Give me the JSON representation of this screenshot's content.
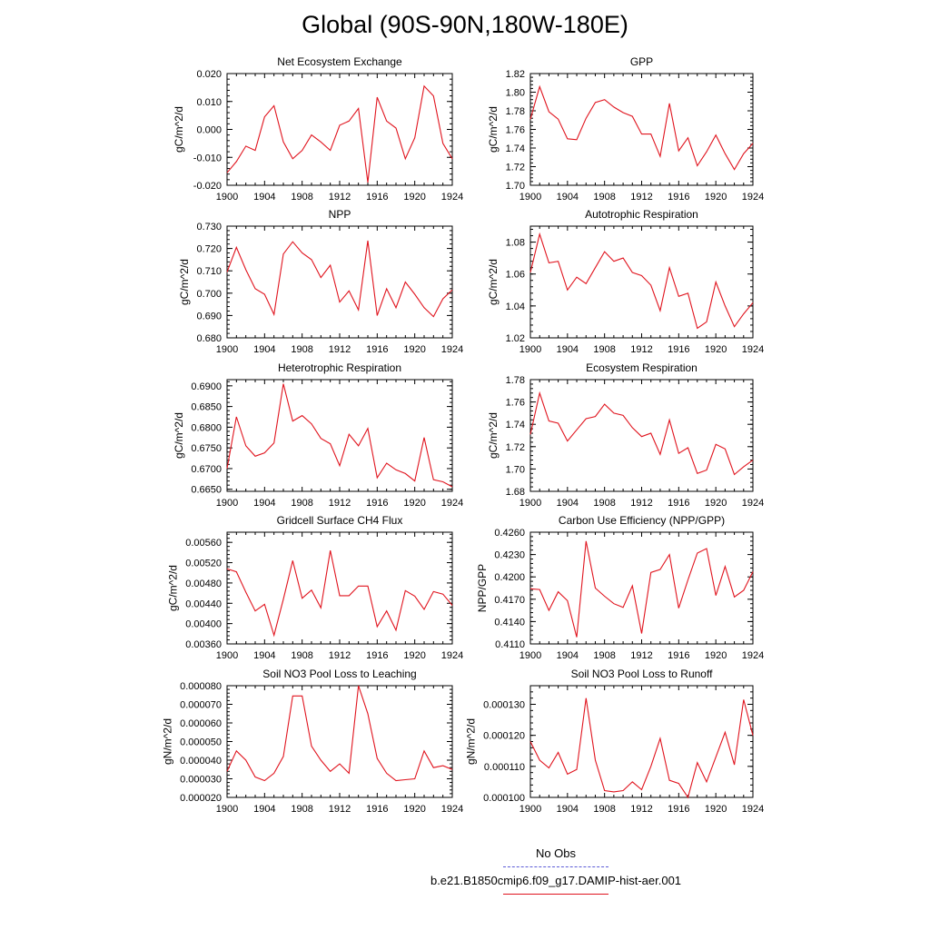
{
  "page": {
    "title": "Global (90S-90N,180W-180E)"
  },
  "legend": {
    "items": [
      {
        "label": "No Obs",
        "color": "#5b5bd6",
        "style": "dashed"
      },
      {
        "label": "b.e21.B1850cmip6.f09_g17.DAMIP-hist-aer.001",
        "color": "#e0141e",
        "style": "solid"
      }
    ]
  },
  "chart_data": [
    {
      "type": "line",
      "title": "Net Ecosystem Exchange",
      "ylabel": "gC/m^2/d",
      "xlim": [
        1900,
        1924
      ],
      "ylim": [
        -0.02,
        0.02
      ],
      "xticks": [
        "1900",
        "1904",
        "1908",
        "1912",
        "1916",
        "1920",
        "1924"
      ],
      "yticks": [
        "-0.020",
        "-0.010",
        "0.000",
        "0.010",
        "0.020"
      ],
      "color": "#e0141e",
      "x": [
        1900,
        1901,
        1902,
        1903,
        1904,
        1905,
        1906,
        1907,
        1908,
        1909,
        1910,
        1911,
        1912,
        1913,
        1914,
        1915,
        1916,
        1917,
        1918,
        1919,
        1920,
        1921,
        1922,
        1923,
        1924
      ],
      "values": [
        -0.0155,
        -0.0115,
        -0.006,
        -0.0075,
        0.0045,
        0.0085,
        -0.0045,
        -0.0105,
        -0.0075,
        -0.002,
        -0.0045,
        -0.0075,
        0.0015,
        0.003,
        0.0075,
        -0.019,
        0.0115,
        0.003,
        0.0005,
        -0.0105,
        -0.003,
        0.0155,
        0.012,
        -0.005,
        -0.0105
      ]
    },
    {
      "type": "line",
      "title": "GPP",
      "ylabel": "gC/m^2/d",
      "xlim": [
        1900,
        1924
      ],
      "ylim": [
        1.7,
        1.82
      ],
      "xticks": [
        "1900",
        "1904",
        "1908",
        "1912",
        "1916",
        "1920",
        "1924"
      ],
      "yticks": [
        "1.70",
        "1.72",
        "1.74",
        "1.76",
        "1.78",
        "1.80",
        "1.82"
      ],
      "color": "#e0141e",
      "x": [
        1900,
        1901,
        1902,
        1903,
        1904,
        1905,
        1906,
        1907,
        1908,
        1909,
        1910,
        1911,
        1912,
        1913,
        1914,
        1915,
        1916,
        1917,
        1918,
        1919,
        1920,
        1921,
        1922,
        1923,
        1924
      ],
      "values": [
        1.771,
        1.806,
        1.779,
        1.771,
        1.75,
        1.749,
        1.772,
        1.789,
        1.792,
        1.784,
        1.778,
        1.774,
        1.755,
        1.755,
        1.731,
        1.788,
        1.737,
        1.751,
        1.721,
        1.736,
        1.754,
        1.734,
        1.717,
        1.734,
        1.745
      ]
    },
    {
      "type": "line",
      "title": "NPP",
      "ylabel": "gC/m^2/d",
      "xlim": [
        1900,
        1924
      ],
      "ylim": [
        0.68,
        0.73
      ],
      "xticks": [
        "1900",
        "1904",
        "1908",
        "1912",
        "1916",
        "1920",
        "1924"
      ],
      "yticks": [
        "0.680",
        "0.690",
        "0.700",
        "0.710",
        "0.720",
        "0.730"
      ],
      "color": "#e0141e",
      "x": [
        1900,
        1901,
        1902,
        1903,
        1904,
        1905,
        1906,
        1907,
        1908,
        1909,
        1910,
        1911,
        1912,
        1913,
        1914,
        1915,
        1916,
        1917,
        1918,
        1919,
        1920,
        1921,
        1922,
        1923,
        1924
      ],
      "values": [
        0.7095,
        0.7205,
        0.7105,
        0.702,
        0.6995,
        0.6905,
        0.7175,
        0.723,
        0.718,
        0.715,
        0.707,
        0.7125,
        0.696,
        0.701,
        0.6925,
        0.7235,
        0.69,
        0.702,
        0.6935,
        0.705,
        0.6995,
        0.6935,
        0.6895,
        0.6975,
        0.7015
      ]
    },
    {
      "type": "line",
      "title": "Autotrophic Respiration",
      "ylabel": "gC/m^2/d",
      "xlim": [
        1900,
        1924
      ],
      "ylim": [
        1.02,
        1.09
      ],
      "xticks": [
        "1900",
        "1904",
        "1908",
        "1912",
        "1916",
        "1920",
        "1924"
      ],
      "yticks": [
        "1.02",
        "1.04",
        "1.06",
        "1.08"
      ],
      "color": "#e0141e",
      "x": [
        1900,
        1901,
        1902,
        1903,
        1904,
        1905,
        1906,
        1907,
        1908,
        1909,
        1910,
        1911,
        1912,
        1913,
        1914,
        1915,
        1916,
        1917,
        1918,
        1919,
        1920,
        1921,
        1922,
        1923,
        1924
      ],
      "values": [
        1.061,
        1.085,
        1.067,
        1.068,
        1.05,
        1.058,
        1.054,
        1.064,
        1.074,
        1.068,
        1.07,
        1.061,
        1.059,
        1.053,
        1.037,
        1.064,
        1.046,
        1.048,
        1.026,
        1.03,
        1.055,
        1.04,
        1.027,
        1.035,
        1.042
      ]
    },
    {
      "type": "line",
      "title": "Heterotrophic Respiration",
      "ylabel": "gC/m^2/d",
      "xlim": [
        1900,
        1924
      ],
      "ylim": [
        0.6645,
        0.6915
      ],
      "xticks": [
        "1900",
        "1904",
        "1908",
        "1912",
        "1916",
        "1920",
        "1924"
      ],
      "yticks": [
        "0.6650",
        "0.6700",
        "0.6750",
        "0.6800",
        "0.6850",
        "0.6900"
      ],
      "color": "#e0141e",
      "x": [
        1900,
        1901,
        1902,
        1903,
        1904,
        1905,
        1906,
        1907,
        1908,
        1909,
        1910,
        1911,
        1912,
        1913,
        1914,
        1915,
        1916,
        1917,
        1918,
        1919,
        1920,
        1921,
        1922,
        1923,
        1924
      ],
      "values": [
        0.67,
        0.6825,
        0.6755,
        0.673,
        0.6738,
        0.6762,
        0.6905,
        0.6815,
        0.6828,
        0.6808,
        0.6773,
        0.676,
        0.6707,
        0.6783,
        0.6755,
        0.6797,
        0.6678,
        0.6713,
        0.6697,
        0.6688,
        0.667,
        0.6775,
        0.6673,
        0.6668,
        0.6656
      ]
    },
    {
      "type": "line",
      "title": "Ecosystem Respiration",
      "ylabel": "gC/m^2/d",
      "xlim": [
        1900,
        1924
      ],
      "ylim": [
        1.68,
        1.78
      ],
      "xticks": [
        "1900",
        "1904",
        "1908",
        "1912",
        "1916",
        "1920",
        "1924"
      ],
      "yticks": [
        "1.68",
        "1.70",
        "1.72",
        "1.74",
        "1.76",
        "1.78"
      ],
      "color": "#e0141e",
      "x": [
        1900,
        1901,
        1902,
        1903,
        1904,
        1905,
        1906,
        1907,
        1908,
        1909,
        1910,
        1911,
        1912,
        1913,
        1914,
        1915,
        1916,
        1917,
        1918,
        1919,
        1920,
        1921,
        1922,
        1923,
        1924
      ],
      "values": [
        1.731,
        1.768,
        1.743,
        1.741,
        1.725,
        1.735,
        1.745,
        1.747,
        1.758,
        1.75,
        1.748,
        1.737,
        1.729,
        1.732,
        1.713,
        1.744,
        1.714,
        1.719,
        1.696,
        1.699,
        1.722,
        1.718,
        1.695,
        1.702,
        1.708
      ]
    },
    {
      "type": "line",
      "title": "Gridcell Surface CH4 Flux",
      "ylabel": "gC/m^2/d",
      "xlim": [
        1900,
        1924
      ],
      "ylim": [
        0.0036,
        0.0058
      ],
      "xticks": [
        "1900",
        "1904",
        "1908",
        "1912",
        "1916",
        "1920",
        "1924"
      ],
      "yticks": [
        "0.00360",
        "0.00400",
        "0.00440",
        "0.00480",
        "0.00520",
        "0.00560"
      ],
      "color": "#e0141e",
      "x": [
        1900,
        1901,
        1902,
        1903,
        1904,
        1905,
        1906,
        1907,
        1908,
        1909,
        1910,
        1911,
        1912,
        1913,
        1914,
        1915,
        1916,
        1917,
        1918,
        1919,
        1920,
        1921,
        1922,
        1923,
        1924
      ],
      "values": [
        0.00508,
        0.00502,
        0.00462,
        0.00425,
        0.00438,
        0.00377,
        0.00448,
        0.00524,
        0.0045,
        0.00466,
        0.00431,
        0.00544,
        0.00455,
        0.00455,
        0.00474,
        0.00474,
        0.00394,
        0.00425,
        0.00387,
        0.00465,
        0.00454,
        0.00428,
        0.00463,
        0.00458,
        0.00436
      ]
    },
    {
      "type": "line",
      "title": "Carbon Use Efficiency (NPP/GPP)",
      "ylabel": "NPP/GPP",
      "xlim": [
        1900,
        1924
      ],
      "ylim": [
        0.411,
        0.426
      ],
      "xticks": [
        "1900",
        "1904",
        "1908",
        "1912",
        "1916",
        "1920",
        "1924"
      ],
      "yticks": [
        "0.4110",
        "0.4140",
        "0.4170",
        "0.4200",
        "0.4230",
        "0.4260"
      ],
      "color": "#e0141e",
      "x": [
        1900,
        1901,
        1902,
        1903,
        1904,
        1905,
        1906,
        1907,
        1908,
        1909,
        1910,
        1911,
        1912,
        1913,
        1914,
        1915,
        1916,
        1917,
        1918,
        1919,
        1920,
        1921,
        1922,
        1923,
        1924
      ],
      "values": [
        0.4184,
        0.4183,
        0.4155,
        0.418,
        0.4168,
        0.4119,
        0.4248,
        0.4185,
        0.4174,
        0.4164,
        0.4159,
        0.4188,
        0.4124,
        0.4206,
        0.421,
        0.423,
        0.4158,
        0.4196,
        0.4232,
        0.4238,
        0.4175,
        0.4214,
        0.4173,
        0.4182,
        0.4207
      ]
    },
    {
      "type": "line",
      "title": "Soil NO3 Pool Loss to Leaching",
      "ylabel": "gN/m^2/d",
      "xlim": [
        1900,
        1924
      ],
      "ylim": [
        2e-05,
        8e-05
      ],
      "xticks": [
        "1900",
        "1904",
        "1908",
        "1912",
        "1916",
        "1920",
        "1924"
      ],
      "yticks": [
        "0.000020",
        "0.000030",
        "0.000040",
        "0.000050",
        "0.000060",
        "0.000070",
        "0.000080"
      ],
      "color": "#e0141e",
      "x": [
        1900,
        1901,
        1902,
        1903,
        1904,
        1905,
        1906,
        1907,
        1908,
        1909,
        1910,
        1911,
        1912,
        1913,
        1914,
        1915,
        1916,
        1917,
        1918,
        1919,
        1920,
        1921,
        1922,
        1923,
        1924
      ],
      "values": [
        3.4e-05,
        4.5e-05,
        4e-05,
        3.1e-05,
        2.9e-05,
        3.3e-05,
        4.2e-05,
        7.45e-05,
        7.45e-05,
        4.75e-05,
        4e-05,
        3.4e-05,
        3.8e-05,
        3.3e-05,
        8e-05,
        6.5e-05,
        4.1e-05,
        3.3e-05,
        2.9e-05,
        2.95e-05,
        3e-05,
        4.5e-05,
        3.6e-05,
        3.7e-05,
        3.5e-05
      ]
    },
    {
      "type": "line",
      "title": "Soil NO3 Pool Loss to Runoff",
      "ylabel": "gN/m^2/d",
      "xlim": [
        1900,
        1924
      ],
      "ylim": [
        0.0001,
        0.000136
      ],
      "xticks": [
        "1900",
        "1904",
        "1908",
        "1912",
        "1916",
        "1920",
        "1924"
      ],
      "yticks": [
        "0.000100",
        "0.000110",
        "0.000120",
        "0.000130"
      ],
      "color": "#e0141e",
      "x": [
        1900,
        1901,
        1902,
        1903,
        1904,
        1905,
        1906,
        1907,
        1908,
        1909,
        1910,
        1911,
        1912,
        1913,
        1914,
        1915,
        1916,
        1917,
        1918,
        1919,
        1920,
        1921,
        1922,
        1923,
        1924
      ],
      "values": [
        0.000118,
        0.000112,
        0.0001095,
        0.0001145,
        0.0001075,
        0.000109,
        0.000132,
        0.000112,
        0.0001022,
        0.0001018,
        0.0001022,
        0.000105,
        0.0001025,
        0.00011,
        0.000119,
        0.0001055,
        0.0001045,
        0.0001,
        0.0001112,
        0.000105,
        0.000113,
        0.000121,
        0.0001105,
        0.0001315,
        0.00012
      ]
    }
  ]
}
